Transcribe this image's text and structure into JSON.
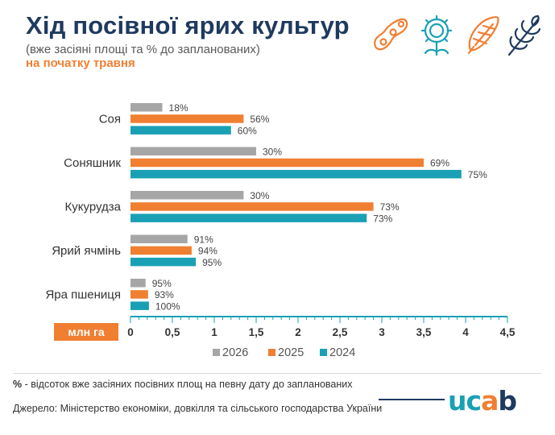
{
  "header": {
    "title": "Хід посівної ярих культур",
    "subtitle": "(вже засіяні площі та % до запланованих)",
    "subtitle_highlight": "на початку травня"
  },
  "icons": [
    "soybean-icon",
    "sunflower-icon",
    "corn-icon",
    "wheat-icon"
  ],
  "colors": {
    "title": "#1f3a5f",
    "accent_orange": "#f07f32",
    "series_2026": "#a6a6a6",
    "series_2025": "#f07f32",
    "series_2024": "#1aa0b4",
    "axis": "#1aa0b4",
    "unit_badge_bg": "#f07f32"
  },
  "chart_data": {
    "type": "bar",
    "orientation": "horizontal",
    "categories": [
      "Соя",
      "Соняшник",
      "Кукурудза",
      "Ярий ячмінь",
      "Яра пшениця"
    ],
    "series": [
      {
        "name": "2026",
        "values": [
          0.38,
          1.5,
          1.35,
          0.68,
          0.18
        ],
        "labels": [
          "18%",
          "30%",
          "30%",
          "91%",
          "95%"
        ]
      },
      {
        "name": "2025",
        "values": [
          1.35,
          3.5,
          2.9,
          0.73,
          0.21
        ],
        "labels": [
          "56%",
          "69%",
          "73%",
          "94%",
          "93%"
        ]
      },
      {
        "name": "2024",
        "values": [
          1.2,
          3.95,
          2.82,
          0.78,
          0.22
        ],
        "labels": [
          "60%",
          "75%",
          "73%",
          "95%",
          "100%"
        ]
      }
    ],
    "unit_label": "млн га",
    "xlim": [
      0,
      4.5
    ],
    "ticks": [
      0,
      0.5,
      1,
      1.5,
      2,
      2.5,
      3,
      3.5,
      4,
      4.5
    ],
    "tick_labels": [
      "0",
      "0,5",
      "1",
      "1,5",
      "2",
      "2,5",
      "3",
      "3,5",
      "4",
      "4,5"
    ],
    "legend": [
      "2026",
      "2025",
      "2024"
    ],
    "legend_position": "bottom",
    "grid": false
  },
  "footer": {
    "footnote_mark": "%",
    "footnote_text": " - відсоток вже засіяних посівних площ на певну дату до запланованих",
    "source": "Джерело: Міністерство економіки, довкілля та сільського господарства України",
    "logo_parts": [
      "u",
      "c",
      "a",
      "b"
    ]
  }
}
